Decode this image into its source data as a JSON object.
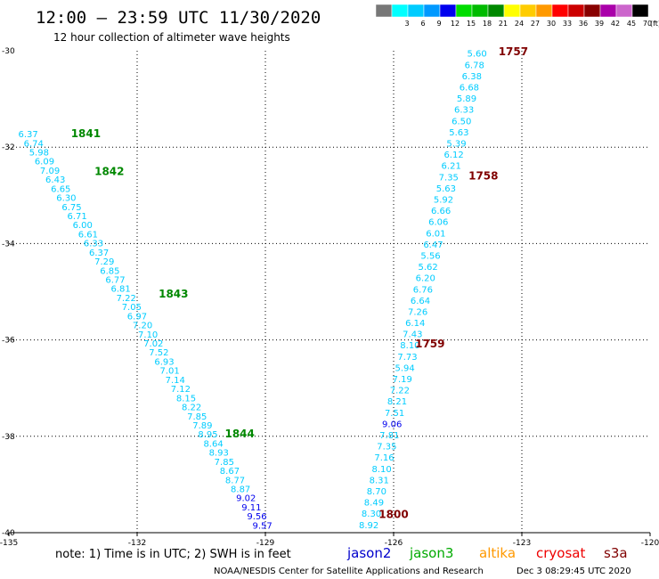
{
  "header": {
    "title": "12:00 – 23:59 UTC 11/30/2020",
    "subtitle": "12 hour collection of altimeter wave heights"
  },
  "footer": {
    "note": "note:  1) Time is in UTC;  2) SWH is in feet",
    "credit": "NOAA/NESDIS Center for Satellite Applications and Research",
    "timestamp": "Dec  3 08:29:45 UTC 2020"
  },
  "satellites": [
    {
      "name": "jason2",
      "color": "#0000cc"
    },
    {
      "name": "jason3",
      "color": "#00aa00"
    },
    {
      "name": "altika",
      "color": "#ff9900"
    },
    {
      "name": "cryosat",
      "color": "#ee0000"
    },
    {
      "name": "s3a",
      "color": "#800000"
    }
  ],
  "legend": {
    "unit": "(ft)",
    "bins": [
      {
        "label": "",
        "color": "#777777"
      },
      {
        "label": "3",
        "color": "#00ffff"
      },
      {
        "label": "6",
        "color": "#00ccff"
      },
      {
        "label": "9",
        "color": "#0099ff"
      },
      {
        "label": "12",
        "color": "#0000ee"
      },
      {
        "label": "15",
        "color": "#00dd00"
      },
      {
        "label": "18",
        "color": "#00bb00"
      },
      {
        "label": "21",
        "color": "#008800"
      },
      {
        "label": "24",
        "color": "#ffff00"
      },
      {
        "label": "27",
        "color": "#ffcc00"
      },
      {
        "label": "30",
        "color": "#ff9900"
      },
      {
        "label": "33",
        "color": "#ff0000"
      },
      {
        "label": "36",
        "color": "#cc0000"
      },
      {
        "label": "39",
        "color": "#880000"
      },
      {
        "label": "42",
        "color": "#aa00aa"
      },
      {
        "label": "45",
        "color": "#cc66cc"
      },
      {
        "label": "70",
        "color": "#000000"
      }
    ]
  },
  "chart_data": {
    "type": "scatter",
    "title": "12:00 – 23:59 UTC 11/30/2020",
    "subtitle": "12 hour collection of altimeter wave heights",
    "xlim": [
      -135,
      -120
    ],
    "ylim": [
      -40,
      -30
    ],
    "x_ticks": [
      -135,
      -132,
      -129,
      -126,
      -123,
      -120
    ],
    "y_ticks": [
      -30,
      -32,
      -34,
      -36,
      -38,
      -40
    ],
    "x_tick_labels": [
      "-135",
      "-132",
      "-129",
      "-126",
      "-123",
      "-120"
    ],
    "y_tick_labels": [
      "-30",
      "-32",
      "-34",
      "-36",
      "-38",
      "-40"
    ],
    "grid": true,
    "series": [
      {
        "satellite": "jason3",
        "start": [
          -134.55,
          -31.72
        ],
        "end": [
          -129.07,
          -39.84
        ],
        "values": [
          "6.37",
          "6.74",
          "5.98",
          "6.09",
          "7.09",
          "6.43",
          "6.65",
          "6.30",
          "6.75",
          "6.71",
          "6.00",
          "6.61",
          "6.33",
          "6.37",
          "7.29",
          "6.85",
          "6.77",
          "6.81",
          "7.22",
          "7.05",
          "6.97",
          "7.20",
          "7.10",
          "7.02",
          "7.52",
          "6.93",
          "7.01",
          "7.14",
          "7.12",
          "8.15",
          "8.22",
          "7.85",
          "7.89",
          "8.95",
          "8.64",
          "8.93",
          "7.85",
          "8.67",
          "8.77",
          "8.87",
          "9.02",
          "9.11",
          "9.56",
          "9.57"
        ],
        "colors": [
          "#00ccff",
          "#00ccff",
          "#00ccff",
          "#00ccff",
          "#00ccff",
          "#00ccff",
          "#00ccff",
          "#00ccff",
          "#00ccff",
          "#00ccff",
          "#00ccff",
          "#00ccff",
          "#00ccff",
          "#00ccff",
          "#00ccff",
          "#00ccff",
          "#00ccff",
          "#00ccff",
          "#00ccff",
          "#00ccff",
          "#00ccff",
          "#00ccff",
          "#00ccff",
          "#00ccff",
          "#00ccff",
          "#00ccff",
          "#00ccff",
          "#00ccff",
          "#00ccff",
          "#00ccff",
          "#00ccff",
          "#00ccff",
          "#00ccff",
          "#00ccff",
          "#00ccff",
          "#00ccff",
          "#00ccff",
          "#00ccff",
          "#00ccff",
          "#00ccff",
          "#0000ee",
          "#0000ee",
          "#0000ee",
          "#0000ee"
        ],
        "times": [
          {
            "label": "1841",
            "at": [
              -133.2,
              -31.72
            ]
          },
          {
            "label": "1842",
            "at": [
              -132.65,
              -32.5
            ]
          },
          {
            "label": "1843",
            "at": [
              -131.15,
              -35.05
            ]
          },
          {
            "label": "1844",
            "at": [
              -129.6,
              -37.95
            ]
          }
        ],
        "time_color": "#008800"
      },
      {
        "satellite": "s3a",
        "start": [
          -124.05,
          -30.05
        ],
        "end": [
          -126.58,
          -39.83
        ],
        "values": [
          "5.60",
          "6.78",
          "6.38",
          "6.68",
          "5.89",
          "6.33",
          "6.50",
          "5.63",
          "5.39",
          "6.12",
          "6.21",
          "7.35",
          "5.63",
          "5.92",
          "6.66",
          "6.06",
          "6.01",
          "6.47",
          "5.56",
          "5.62",
          "6.20",
          "6.76",
          "6.64",
          "7.26",
          "6.14",
          "7.43",
          "8.10",
          "7.73",
          "5.94",
          "7.19",
          "7.22",
          "8.21",
          "7.51",
          "9.06",
          "7.81",
          "7.35",
          "7.16",
          "8.10",
          "8.31",
          "8.70",
          "8.49",
          "8.30",
          "8.92"
        ],
        "colors": [
          "#00ccff",
          "#00ccff",
          "#00ccff",
          "#00ccff",
          "#00ccff",
          "#00ccff",
          "#00ccff",
          "#00ccff",
          "#00ccff",
          "#00ccff",
          "#00ccff",
          "#00ccff",
          "#00ccff",
          "#00ccff",
          "#00ccff",
          "#00ccff",
          "#00ccff",
          "#00ccff",
          "#00ccff",
          "#00ccff",
          "#00ccff",
          "#00ccff",
          "#00ccff",
          "#00ccff",
          "#00ccff",
          "#00ccff",
          "#00ccff",
          "#00ccff",
          "#00ccff",
          "#00ccff",
          "#00ccff",
          "#00ccff",
          "#00ccff",
          "#0000ee",
          "#00ccff",
          "#00ccff",
          "#00ccff",
          "#00ccff",
          "#00ccff",
          "#00ccff",
          "#00ccff",
          "#00ccff",
          "#00ccff"
        ],
        "times": [
          {
            "label": "1757",
            "at": [
              -123.2,
              -30.02
            ]
          },
          {
            "label": "1758",
            "at": [
              -123.9,
              -32.6
            ]
          },
          {
            "label": "1759",
            "at": [
              -125.15,
              -36.08
            ]
          },
          {
            "label": "1800",
            "at": [
              -126.0,
              -39.62
            ]
          }
        ],
        "time_color": "#800000"
      }
    ]
  }
}
